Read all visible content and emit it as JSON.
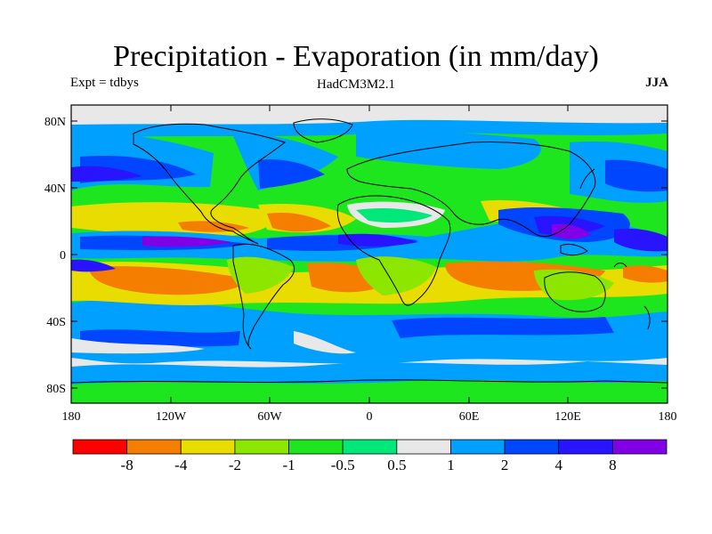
{
  "header": {
    "title": "Precipitation - Evaporation (in mm/day)",
    "left_label": "Expt = tdbys",
    "center_label": "HadCM3M2.1",
    "right_label": "JJA"
  },
  "map": {
    "lat_ticks": [
      "80N",
      "40N",
      "0",
      "40S",
      "80S"
    ],
    "lon_ticks": [
      "180",
      "120W",
      "60W",
      "0",
      "60E",
      "120E",
      "180"
    ]
  },
  "colorbar": {
    "colors": [
      "#ff0000",
      "#f57d00",
      "#e8dc00",
      "#8ce600",
      "#1ee61e",
      "#00e87a",
      "#e8e8e8",
      "#00a0ff",
      "#0046ff",
      "#2814ff",
      "#8200e6"
    ],
    "labels": [
      "-8",
      "-4",
      "-2",
      "-1",
      "-0.5",
      "0.5",
      "1",
      "2",
      "4",
      "8"
    ]
  }
}
